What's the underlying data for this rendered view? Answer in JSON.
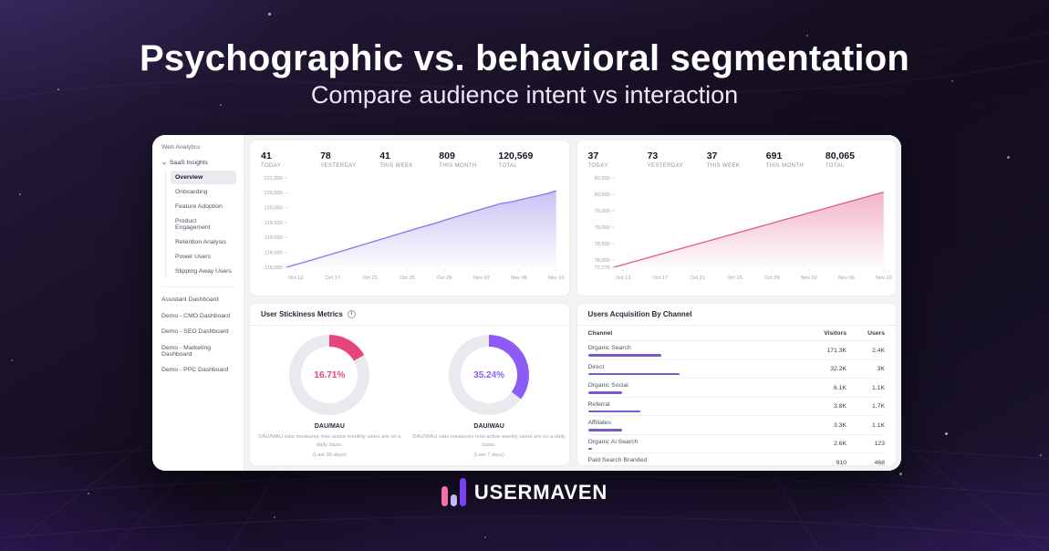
{
  "hero": {
    "title": "Psychographic vs. behavioral segmentation",
    "subtitle": "Compare audience intent vs interaction"
  },
  "brand": {
    "name": "USERMAVEN",
    "bar_colors": [
      "#f36fa8",
      "#c9b6f8",
      "#7b40f2"
    ]
  },
  "dashboard": {
    "sidebar": {
      "section_label": "Web Analytics",
      "group_label": "SaaS Insights",
      "items": [
        {
          "label": "Overview",
          "active": true
        },
        {
          "label": "Onboarding"
        },
        {
          "label": "Feature Adoption"
        },
        {
          "label": "Product Engagement"
        },
        {
          "label": "Retention Analysis"
        },
        {
          "label": "Power Users"
        },
        {
          "label": "Slipping Away Users"
        }
      ],
      "bottom_items": [
        {
          "label": "Assistant Dashboard"
        },
        {
          "label": "Demo - CMO Dashboard"
        },
        {
          "label": "Demo - SEO Dashboard"
        },
        {
          "label": "Demo - Marketing Dashboard"
        },
        {
          "label": "Demo - PPC Dashboard"
        }
      ]
    },
    "stickiness_title": "User Stickiness Metrics"
  },
  "chart_data": [
    {
      "id": "visitors_trend",
      "type": "area",
      "color": "#8678e8",
      "title": "Cumulative visitors trend",
      "stats": [
        {
          "value": "41",
          "label": "TODAY"
        },
        {
          "value": "78",
          "label": "YESTERDAY"
        },
        {
          "value": "41",
          "label": "THIS WEEK"
        },
        {
          "value": "809",
          "label": "THIS MONTH"
        },
        {
          "value": "120,569",
          "label": "TOTAL"
        }
      ],
      "x_labels": [
        "Oct 13",
        "Oct 17",
        "Oct 21",
        "Oct 25",
        "Oct 29",
        "Nov 02",
        "Nov 06",
        "Nov 10"
      ],
      "label_indices": [
        1,
        5,
        9,
        13,
        17,
        21,
        25,
        29
      ],
      "values": [
        118000,
        118090,
        118175,
        118265,
        118360,
        118450,
        118545,
        118640,
        118735,
        118830,
        118920,
        119015,
        119110,
        119205,
        119300,
        119390,
        119480,
        119580,
        119670,
        119765,
        119860,
        119950,
        120045,
        120140,
        120185,
        120260,
        120330,
        120400,
        120470,
        120569
      ],
      "y_ticks": [
        "121,000",
        "120,500",
        "120,000",
        "119,500",
        "119,000",
        "118,500",
        "118,000"
      ],
      "ylim": [
        118000,
        121000
      ],
      "grid": false,
      "legend": false
    },
    {
      "id": "users_trend",
      "type": "area",
      "color": "#e0598e",
      "title": "Cumulative users trend",
      "stats": [
        {
          "value": "37",
          "label": "TODAY"
        },
        {
          "value": "73",
          "label": "YESTERDAY"
        },
        {
          "value": "37",
          "label": "THIS WEEK"
        },
        {
          "value": "691",
          "label": "THIS MONTH"
        },
        {
          "value": "80,065",
          "label": "TOTAL"
        }
      ],
      "x_labels": [
        "Oct 13",
        "Oct 17",
        "Oct 21",
        "Oct 25",
        "Oct 29",
        "Nov 02",
        "Nov 06",
        "Nov 10"
      ],
      "label_indices": [
        1,
        5,
        9,
        13,
        17,
        21,
        25,
        29
      ],
      "values": [
        77776,
        77855,
        77934,
        78013,
        78092,
        78171,
        78250,
        78329,
        78408,
        78487,
        78566,
        78645,
        78724,
        78803,
        78882,
        78961,
        79040,
        79119,
        79198,
        79277,
        79356,
        79435,
        79514,
        79593,
        79672,
        79751,
        79830,
        79909,
        79988,
        80065
      ],
      "y_ticks": [
        "80,500",
        "80,000",
        "79,500",
        "79,000",
        "78,500",
        "78,000",
        "77,776"
      ],
      "ylim": [
        77776,
        80500
      ],
      "grid": false,
      "legend": false
    },
    {
      "id": "dau_mau",
      "type": "donut",
      "percent": 16.71,
      "display": "16.71%",
      "label": "DAU/MAU",
      "description": "DAU/MAU ratio measures how active monthly users are on a daily basis.",
      "period": "(Last 30 days)",
      "color": "#e8457c",
      "track": "#e9eaef"
    },
    {
      "id": "dau_wau",
      "type": "donut",
      "percent": 35.24,
      "display": "35.24%",
      "label": "DAU/WAU",
      "description": "DAU/WAU ratio measures how active weekly users are on a daily basis.",
      "period": "(Last 7 days)",
      "color": "#8b5cf6",
      "track": "#e9eaef"
    },
    {
      "id": "acquisition",
      "type": "table",
      "title": "Users Acquisition By Channel",
      "columns": [
        "Channel",
        "Visitors",
        "Users"
      ],
      "bar_color": "#7a59cf",
      "rows": [
        {
          "channel": "Organic Search",
          "visitors": "171.3K",
          "users": "2.4K",
          "bar_pct": 80
        },
        {
          "channel": "Direct",
          "visitors": "32.2K",
          "users": "3K",
          "bar_pct": 100
        },
        {
          "channel": "Organic Social",
          "visitors": "6.1K",
          "users": "1.1K",
          "bar_pct": 37
        },
        {
          "channel": "Referral",
          "visitors": "3.8K",
          "users": "1.7K",
          "bar_pct": 57
        },
        {
          "channel": "Affiliates",
          "visitors": "3.3K",
          "users": "1.1K",
          "bar_pct": 37
        },
        {
          "channel": "Organic Ai Search",
          "visitors": "2.6K",
          "users": "123",
          "bar_pct": 4
        },
        {
          "channel": "Paid Search Branded",
          "visitors": "910",
          "users": "468",
          "bar_pct": 16
        }
      ]
    }
  ]
}
